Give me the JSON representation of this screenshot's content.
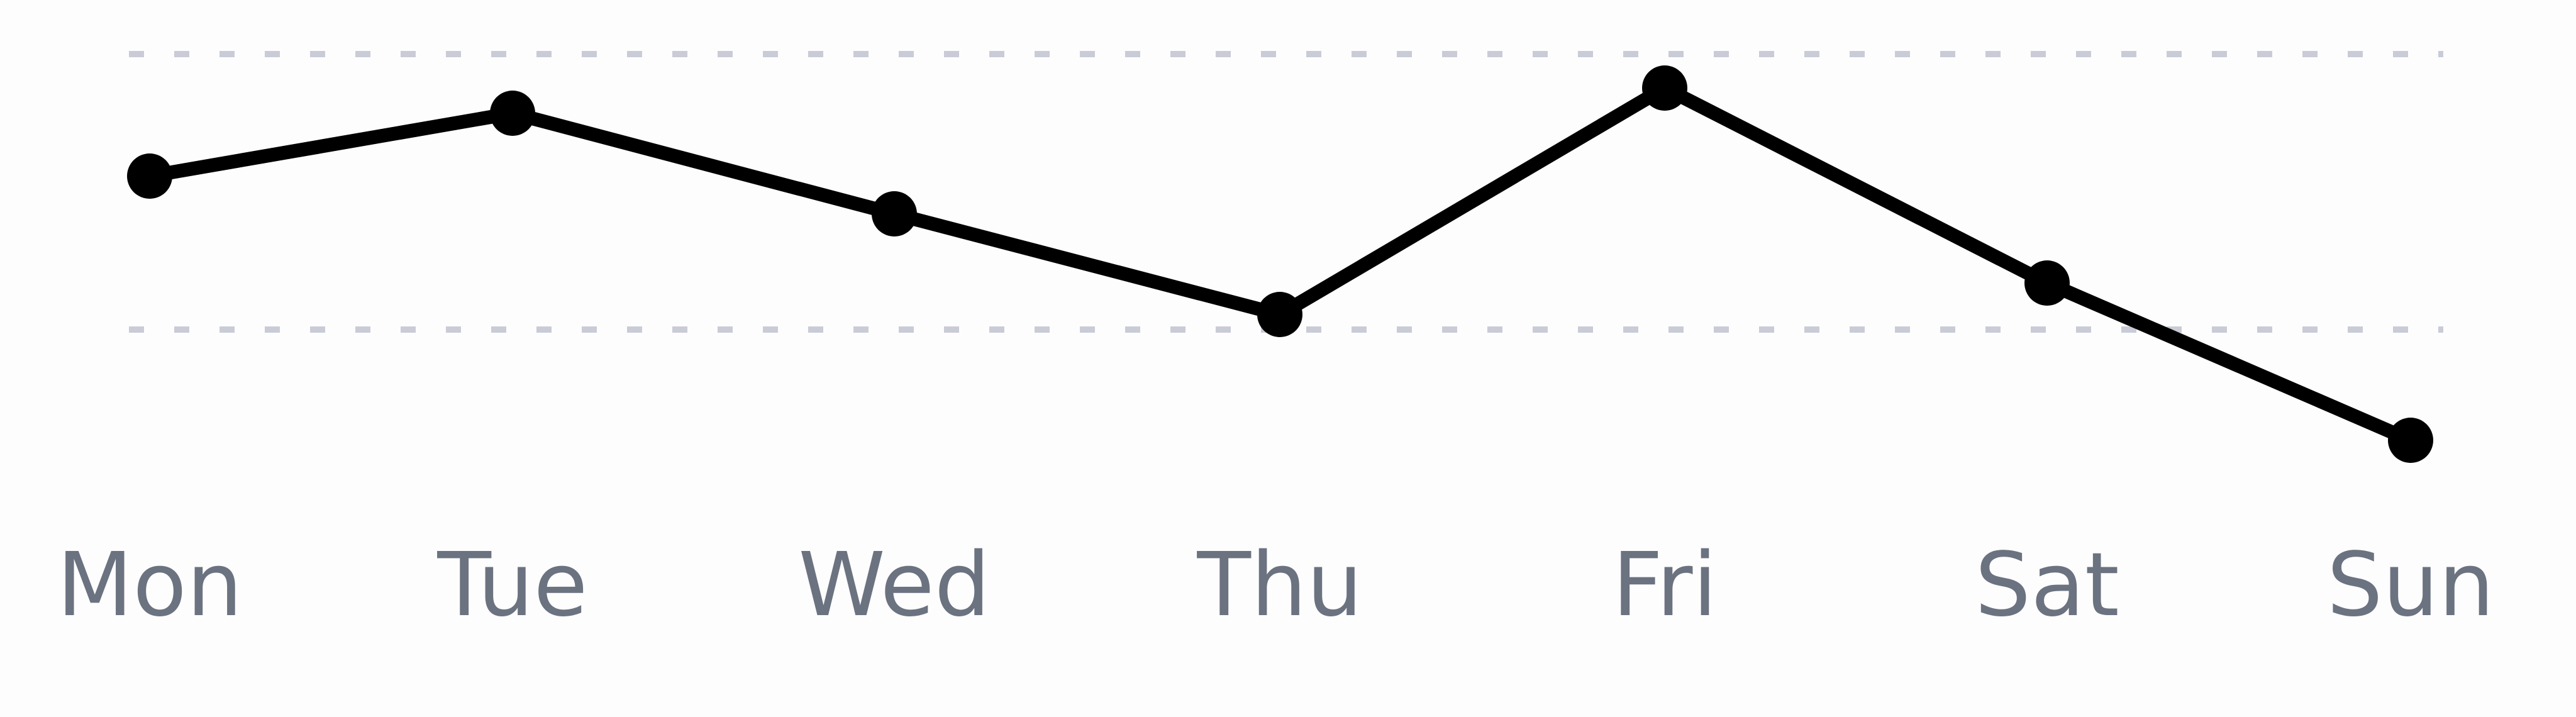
{
  "colors": {
    "background": "#fdfdfe",
    "line": "#000000",
    "point": "#000000",
    "grid": "#c9ccd6",
    "tick_text": "#6b7280"
  },
  "chart_data": {
    "type": "line",
    "title": "",
    "xlabel": "",
    "ylabel": "",
    "categories": [
      "Mon",
      "Tue",
      "Wed",
      "Thu",
      "Fri",
      "Sat",
      "Sun"
    ],
    "series": [
      {
        "values": [
          58,
          68,
          52,
          36,
          72,
          41,
          16
        ]
      }
    ],
    "ylim": [
      0,
      80
    ],
    "grid": true,
    "gridlines_at": [
      77.4,
      33.6
    ],
    "legend": "none"
  }
}
